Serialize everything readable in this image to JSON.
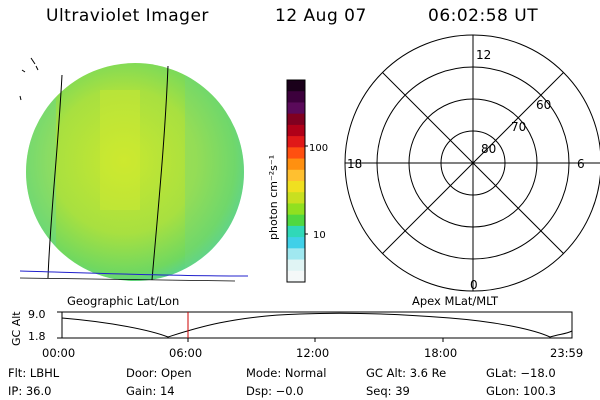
{
  "header": {
    "instrument": "Ultraviolet Imager",
    "date": "12 Aug 07",
    "time": "06:02:58 UT"
  },
  "colorbar": {
    "label": "photon cm⁻²s⁻¹",
    "ticks": [
      "100",
      "10"
    ],
    "colors": [
      "#1a001a",
      "#3c003c",
      "#5a0a5a",
      "#800020",
      "#b00018",
      "#e01818",
      "#ff5010",
      "#ff9010",
      "#ffc030",
      "#f0e020",
      "#c8e020",
      "#90e020",
      "#50d840",
      "#30d8b8",
      "#40d0e8",
      "#a0e8f0",
      "#e0f4f4",
      "#f4f8f8"
    ]
  },
  "left_panel": {
    "caption": "Geographic Lat/Lon",
    "disk_color": "#a8e040"
  },
  "right_panel": {
    "caption": "Apex MLat/MLT",
    "mlt_labels": {
      "top": "12",
      "left": "18",
      "right": "6",
      "bottom": "0"
    },
    "lat_labels": [
      "80",
      "70",
      "60"
    ]
  },
  "orbit_plot": {
    "ylabel": "GC Alt",
    "yticks": [
      "9.0",
      "1.8"
    ],
    "xticks": [
      "00:00",
      "06:00",
      "12:00",
      "18:00",
      "23:59"
    ],
    "current_time_marker_color": "#cc0000"
  },
  "info": {
    "flt": "Flt: LBHL",
    "door": "Door: Open",
    "mode": "Mode: Normal",
    "gc_alt": "GC Alt: 3.6 Re",
    "glat": "GLat: −18.0",
    "ip": "IP: 36.0",
    "gain": "Gain: 14",
    "dsp": "Dsp:   −0.0",
    "seq": "Seq: 39",
    "glon": "GLon: 100.3"
  }
}
